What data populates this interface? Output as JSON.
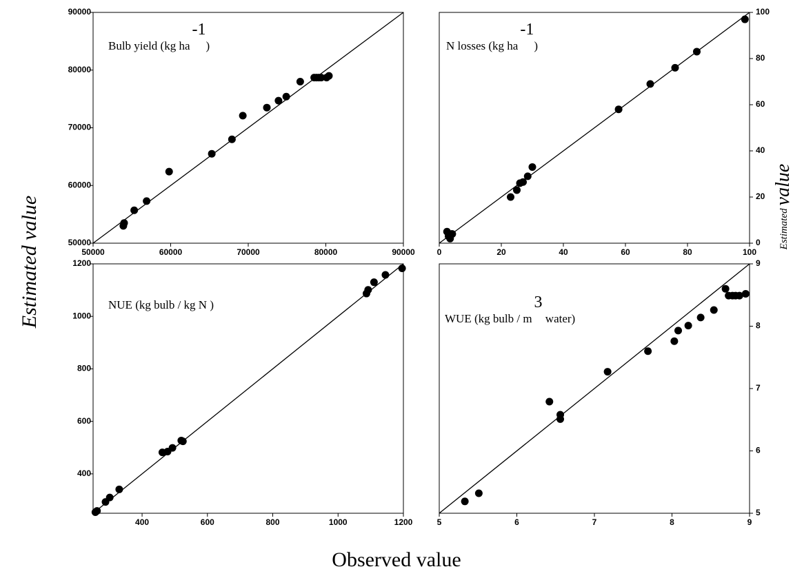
{
  "figure": {
    "xlabel": "Observed value",
    "ylabel": "Estimated value",
    "y2label": [
      "Estimated",
      "value"
    ]
  },
  "chart_data": [
    {
      "type": "scatter",
      "title": [
        "Bulb yield (kg ha",
        "-1",
        ")"
      ],
      "color": "#000000",
      "y_axis_side": "left",
      "xlim": [
        50000,
        90000
      ],
      "ylim": [
        50000,
        90000
      ],
      "xticks": [
        50000,
        60000,
        70000,
        80000,
        90000
      ],
      "yticks": [
        50000,
        60000,
        70000,
        80000,
        90000
      ],
      "x": [
        53900,
        54000,
        55300,
        56900,
        59800,
        65300,
        67900,
        69300,
        72400,
        73900,
        74900,
        76700,
        78500,
        78800,
        79100,
        79400,
        80100,
        80400
      ],
      "y": [
        53000,
        53500,
        55700,
        57300,
        62400,
        65500,
        68000,
        72100,
        73500,
        74700,
        75400,
        78000,
        78700,
        78700,
        78700,
        78700,
        78700,
        79000
      ]
    },
    {
      "type": "scatter",
      "title": [
        "N losses (kg ha",
        "-1",
        ")"
      ],
      "color": "#000000",
      "y_axis_side": "right",
      "xlim": [
        0,
        100
      ],
      "ylim": [
        0,
        100
      ],
      "xticks": [
        0,
        20,
        40,
        60,
        80,
        100
      ],
      "yticks": [
        0,
        20,
        40,
        60,
        80,
        100
      ],
      "x": [
        2.5,
        3,
        3.5,
        4,
        4.2,
        23,
        25,
        26,
        27,
        28.5,
        30,
        57.8,
        68,
        76,
        83,
        98.5
      ],
      "y": [
        5,
        3,
        2,
        4,
        4,
        20,
        23,
        26,
        26.5,
        29,
        33,
        58,
        69,
        76,
        83,
        97
      ]
    },
    {
      "type": "scatter",
      "title": [
        "NUE (kg bulb / kg N )"
      ],
      "color": "#000000",
      "y_axis_side": "left",
      "xlim": [
        250,
        1200
      ],
      "ylim": [
        250,
        1200
      ],
      "xticks": [
        400,
        600,
        800,
        1000,
        1200
      ],
      "yticks": [
        400,
        600,
        800,
        1000,
        1200
      ],
      "x": [
        257,
        262,
        288,
        301,
        330,
        462,
        478,
        493,
        520,
        525,
        1087,
        1092,
        1110,
        1145,
        1196
      ],
      "y": [
        254,
        259,
        293,
        310,
        341,
        482,
        485,
        499,
        527,
        524,
        1087,
        1101,
        1130,
        1158,
        1183
      ]
    },
    {
      "type": "scatter",
      "title": [
        "WUE (kg bulb / m",
        "3",
        " water)"
      ],
      "color": "#000000",
      "y_axis_side": "right",
      "xlim": [
        5,
        9
      ],
      "ylim": [
        5,
        9
      ],
      "xticks": [
        5,
        6,
        7,
        8,
        9
      ],
      "yticks": [
        5,
        6,
        7,
        8,
        9
      ],
      "x": [
        5.33,
        5.51,
        6.42,
        6.56,
        6.56,
        7.17,
        7.69,
        8.03,
        8.08,
        8.21,
        8.37,
        8.54,
        8.69,
        8.73,
        8.78,
        8.82,
        8.87,
        8.95
      ],
      "y": [
        5.19,
        5.32,
        6.79,
        6.58,
        6.51,
        7.27,
        7.6,
        7.76,
        7.93,
        8.01,
        8.14,
        8.26,
        8.6,
        8.49,
        8.49,
        8.49,
        8.49,
        8.52
      ]
    }
  ]
}
